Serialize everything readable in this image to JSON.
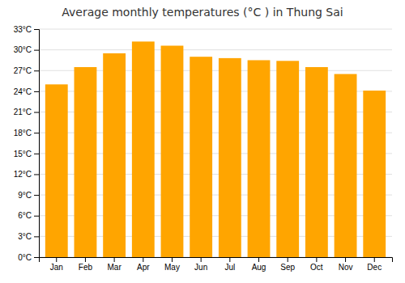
{
  "chart_data": {
    "type": "bar",
    "title": "Average monthly temperatures (°C ) in Thung Sai",
    "categories": [
      "Jan",
      "Feb",
      "Mar",
      "Apr",
      "May",
      "Jun",
      "Jul",
      "Aug",
      "Sep",
      "Oct",
      "Nov",
      "Dec"
    ],
    "values": [
      25.0,
      27.5,
      29.5,
      31.2,
      30.6,
      29.0,
      28.8,
      28.5,
      28.4,
      27.5,
      26.5,
      24.1
    ],
    "color": "#FFA500",
    "ylim": [
      0,
      33
    ],
    "yticks": [
      {
        "value": 0,
        "label": "0°C"
      },
      {
        "value": 3,
        "label": "3°C"
      },
      {
        "value": 6,
        "label": "6°C"
      },
      {
        "value": 9,
        "label": "9°C"
      },
      {
        "value": 12,
        "label": "12°C"
      },
      {
        "value": 15,
        "label": "15°C"
      },
      {
        "value": 18,
        "label": "18°C"
      },
      {
        "value": 21,
        "label": "21°C"
      },
      {
        "value": 24,
        "label": "24°C"
      },
      {
        "value": 27,
        "label": "27°C"
      },
      {
        "value": 30,
        "label": "30°C"
      },
      {
        "value": 33,
        "label": "33°C"
      }
    ],
    "grid": true
  }
}
